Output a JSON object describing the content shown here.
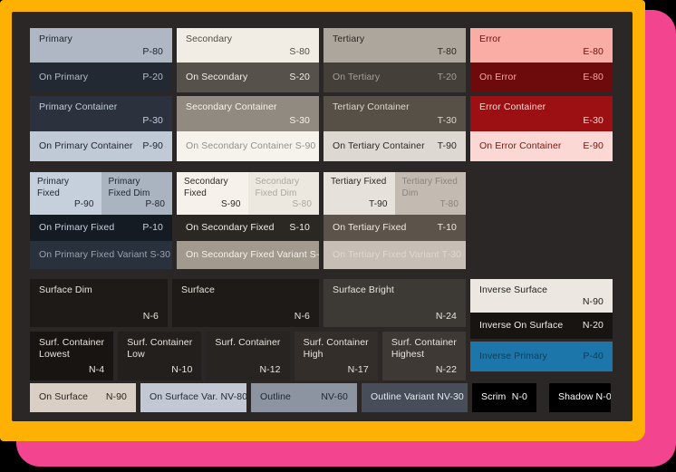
{
  "frame": {
    "page_bg": "#000000",
    "pink_card_color": "#f3458f",
    "orange_card_color": "#ffb103",
    "panel_bg": "#2b2726"
  },
  "palette": {
    "primary": {
      "base": {
        "label": "Primary",
        "value": "P-80",
        "bg": "#aeb7c3",
        "fg": "#1d242d"
      },
      "on": {
        "label": "On Primary",
        "value": "P-20",
        "bg": "#222933",
        "fg": "#b3bcc9"
      },
      "container": {
        "label": "Primary Container",
        "value": "P-30",
        "bg": "#2b323d",
        "fg": "#c3cdda"
      },
      "on_container": {
        "label": "On Primary Container",
        "value": "P-90",
        "bg": "#c0c9d6",
        "fg": "#1d242d"
      },
      "fixed": {
        "label": "Primary Fixed",
        "value": "P-90",
        "bg": "#c6d0dd",
        "fg": "#1d242d"
      },
      "fixed_dim": {
        "label": "Primary Fixed Dim",
        "value": "P-80",
        "bg": "#aab3c0",
        "fg": "#1d242d"
      },
      "on_fixed": {
        "label": "On Primary Fixed",
        "value": "P-10",
        "bg": "#151b23",
        "fg": "#c6d0dd"
      },
      "on_fixed_variant": {
        "label": "On Primary Fixed Variant",
        "value": "S-30",
        "bg": "#28313c",
        "fg": "#9aa4b1"
      }
    },
    "secondary": {
      "base": {
        "label": "Secondary",
        "value": "S-80",
        "bg": "#f1ede5",
        "fg": "#514c45"
      },
      "on": {
        "label": "On Secondary",
        "value": "S-20",
        "bg": "#56514a",
        "fg": "#f4f0e8"
      },
      "container": {
        "label": "Secondary Container",
        "value": "S-30",
        "bg": "#918a80",
        "fg": "#f7f4ed"
      },
      "on_container": {
        "label": "On Secondary Container",
        "value": "S-90",
        "bg": "#f6f3ec",
        "fg": "#94908a"
      },
      "fixed": {
        "label": "Secondary Fixed",
        "value": "S-90",
        "bg": "#f6f2eb",
        "fg": "#2b2722"
      },
      "fixed_dim": {
        "label": "Secondary Fixed Dim",
        "value": "S-80",
        "bg": "#ede8df",
        "fg": "#ada79e"
      },
      "on_fixed": {
        "label": "On Secondary Fixed",
        "value": "S-10",
        "bg": "#2b2823",
        "fg": "#f1ede5"
      },
      "on_fixed_variant": {
        "label": "On Secondary Fixed Variant",
        "value": "S-30",
        "bg": "#a39a8f",
        "fg": "#f5f1ea"
      }
    },
    "tertiary": {
      "base": {
        "label": "Tertiary",
        "value": "T-80",
        "bg": "#aca69d",
        "fg": "#2d2822"
      },
      "on": {
        "label": "On Tertiary",
        "value": "T-20",
        "bg": "#443f39",
        "fg": "#a6a097"
      },
      "container": {
        "label": "Tertiary Container",
        "value": "T-30",
        "bg": "#575046",
        "fg": "#ded9d1"
      },
      "on_container": {
        "label": "On Tertiary Container",
        "value": "T-90",
        "bg": "#ddd9d2",
        "fg": "#2d2822"
      },
      "fixed": {
        "label": "Tertiary Fixed",
        "value": "T-90",
        "bg": "#e6e2db",
        "fg": "#2a251f"
      },
      "fixed_dim": {
        "label": "Tertiary Fixed Dim",
        "value": "T-80",
        "bg": "#c3bbb1",
        "fg": "#8b847b"
      },
      "on_fixed": {
        "label": "On Tertiary Fixed",
        "value": "T-10",
        "bg": "#5c544a",
        "fg": "#eee9e1"
      },
      "on_fixed_variant": {
        "label": "On Tertiary Fixed Variant",
        "value": "T-30",
        "bg": "#c7bfb5",
        "fg": "#ded8ce"
      }
    },
    "error": {
      "base": {
        "label": "Error",
        "value": "E-80",
        "bg": "#f9ada5",
        "fg": "#6b120c"
      },
      "on": {
        "label": "On Error",
        "value": "E-80",
        "bg": "#6d0a0b",
        "fg": "#f5a9a1"
      },
      "container": {
        "label": "Error Container",
        "value": "E-30",
        "bg": "#9c0f12",
        "fg": "#fbd8d3"
      },
      "on_container": {
        "label": "On Error Container",
        "value": "E-90",
        "bg": "#fbd8d3",
        "fg": "#7a1410"
      }
    },
    "surface": {
      "dim": {
        "label": "Surface Dim",
        "value": "N-6",
        "bg": "#1d1a17",
        "fg": "#e9e4dd"
      },
      "base": {
        "label": "Surface",
        "value": "N-6",
        "bg": "#1d1a17",
        "fg": "#e9e4dd"
      },
      "bright": {
        "label": "Surface Bright",
        "value": "N-24",
        "bg": "#3d3934",
        "fg": "#e9e4dd"
      },
      "container_lowest": {
        "label": "Surf. Container Lowest",
        "value": "N-4",
        "bg": "#181411",
        "fg": "#e9e4dd"
      },
      "container_low": {
        "label": "Surf. Container Low",
        "value": "N-10",
        "bg": "#231f1c",
        "fg": "#e9e4dd"
      },
      "container": {
        "label": "Surf. Container",
        "value": "N-12",
        "bg": "#282421",
        "fg": "#e9e4dd"
      },
      "container_high": {
        "label": "Surf. Container High",
        "value": "N-17",
        "bg": "#332e2a",
        "fg": "#e9e4dd"
      },
      "container_highest": {
        "label": "Surf. Container Highest",
        "value": "N-22",
        "bg": "#3e3934",
        "fg": "#e9e4dd"
      },
      "inverse_surface": {
        "label": "Inverse Surface",
        "value": "N-90",
        "bg": "#ece8e1",
        "fg": "#22201c"
      },
      "inverse_on_surface": {
        "label": "Inverse On Surface",
        "value": "N-20",
        "bg": "#171411",
        "fg": "#f0ebe4"
      },
      "inverse_primary": {
        "label": "Inverse Primary",
        "value": "P-40",
        "bg": "#1c76a9",
        "fg": "#0e3d5c"
      },
      "on_surface": {
        "label": "On Surface",
        "value": "N-90",
        "bg": "#dacfc4",
        "fg": "#2a241e"
      },
      "on_surface_variant": {
        "label": "On Surface Var.",
        "value": "NV-80",
        "bg": "#c2c9d5",
        "fg": "#232a33"
      },
      "outline": {
        "label": "Outline",
        "value": "NV-60",
        "bg": "#8c94a2",
        "fg": "#20262f"
      },
      "outline_variant": {
        "label": "Outline Variant",
        "value": "NV-30",
        "bg": "#484e59",
        "fg": "#e7ebf2"
      },
      "scrim": {
        "label": "Scrim",
        "value": "N-0",
        "bg": "#000000",
        "fg": "#ffffff"
      },
      "shadow": {
        "label": "Shadow",
        "value": "N-0",
        "bg": "#000000",
        "fg": "#ffffff"
      }
    }
  }
}
